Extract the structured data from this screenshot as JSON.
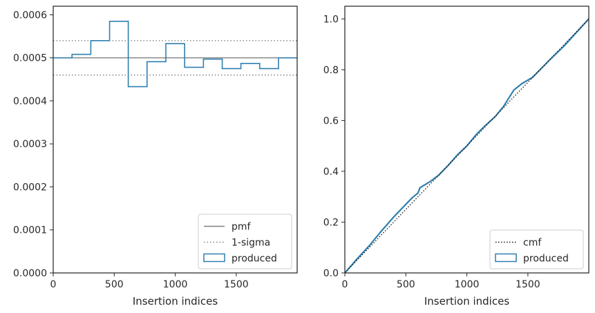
{
  "colors": {
    "produced": "#2f7fb0",
    "pmf": "#808080",
    "sigma": "#808080",
    "cmf": "#111111",
    "axes": "#262626"
  },
  "chart_data": [
    {
      "type": "histogram",
      "xlabel": "Insertion indices",
      "ylabel": "",
      "xlim": [
        0,
        1999
      ],
      "ylim": [
        0,
        0.00062
      ],
      "xticks": [
        0,
        500,
        1000,
        1500
      ],
      "xtick_labels": [
        "0",
        "500",
        "1000",
        "1500"
      ],
      "yticks": [
        0,
        0.0001,
        0.0002,
        0.0003,
        0.0004,
        0.0005,
        0.0006
      ],
      "ytick_labels": [
        "0.0000",
        "0.0001",
        "0.0002",
        "0.0003",
        "0.0004",
        "0.0005",
        "0.0006"
      ],
      "pmf": 0.0005,
      "sigma_band": [
        0.00046,
        0.00054
      ],
      "bin_edges": [
        0,
        154,
        308,
        462,
        615,
        769,
        923,
        1077,
        1231,
        1385,
        1538,
        1692,
        1846,
        1999
      ],
      "values": [
        0.0005,
        0.000508,
        0.00054,
        0.000585,
        0.000433,
        0.000491,
        0.000533,
        0.000478,
        0.000497,
        0.000475,
        0.000487,
        0.000475,
        0.0005
      ],
      "legend_position": "lower right",
      "legend": [
        {
          "key": "pmf",
          "label": "pmf"
        },
        {
          "key": "sigma",
          "label": "1-sigma"
        },
        {
          "key": "produced",
          "label": "produced"
        }
      ]
    },
    {
      "type": "line",
      "xlabel": "Insertion indices",
      "ylabel": "",
      "xlim": [
        0,
        1999
      ],
      "ylim": [
        0,
        1.05
      ],
      "xticks": [
        0,
        500,
        1000,
        1500
      ],
      "xtick_labels": [
        "0",
        "500",
        "1000",
        "1500"
      ],
      "yticks": [
        0,
        0.2,
        0.4,
        0.6,
        0.8,
        1.0
      ],
      "ytick_labels": [
        "0.0",
        "0.2",
        "0.4",
        "0.6",
        "0.8",
        "1.0"
      ],
      "cmf": {
        "x": [
          0,
          1999
        ],
        "y": [
          0,
          1.0
        ]
      },
      "produced": {
        "x": [
          0,
          100,
          200,
          300,
          400,
          500,
          550,
          600,
          615,
          700,
          769,
          850,
          923,
          1000,
          1077,
          1150,
          1231,
          1300,
          1385,
          1450,
          1538,
          1600,
          1692,
          1800,
          1900,
          1999
        ],
        "y": [
          0,
          0.055,
          0.107,
          0.165,
          0.22,
          0.27,
          0.295,
          0.315,
          0.335,
          0.36,
          0.385,
          0.425,
          0.465,
          0.5,
          0.545,
          0.58,
          0.615,
          0.655,
          0.72,
          0.745,
          0.77,
          0.8,
          0.845,
          0.895,
          0.948,
          1.0
        ]
      },
      "legend_position": "lower right",
      "legend": [
        {
          "key": "cmf",
          "label": "cmf"
        },
        {
          "key": "produced",
          "label": "produced"
        }
      ]
    }
  ]
}
